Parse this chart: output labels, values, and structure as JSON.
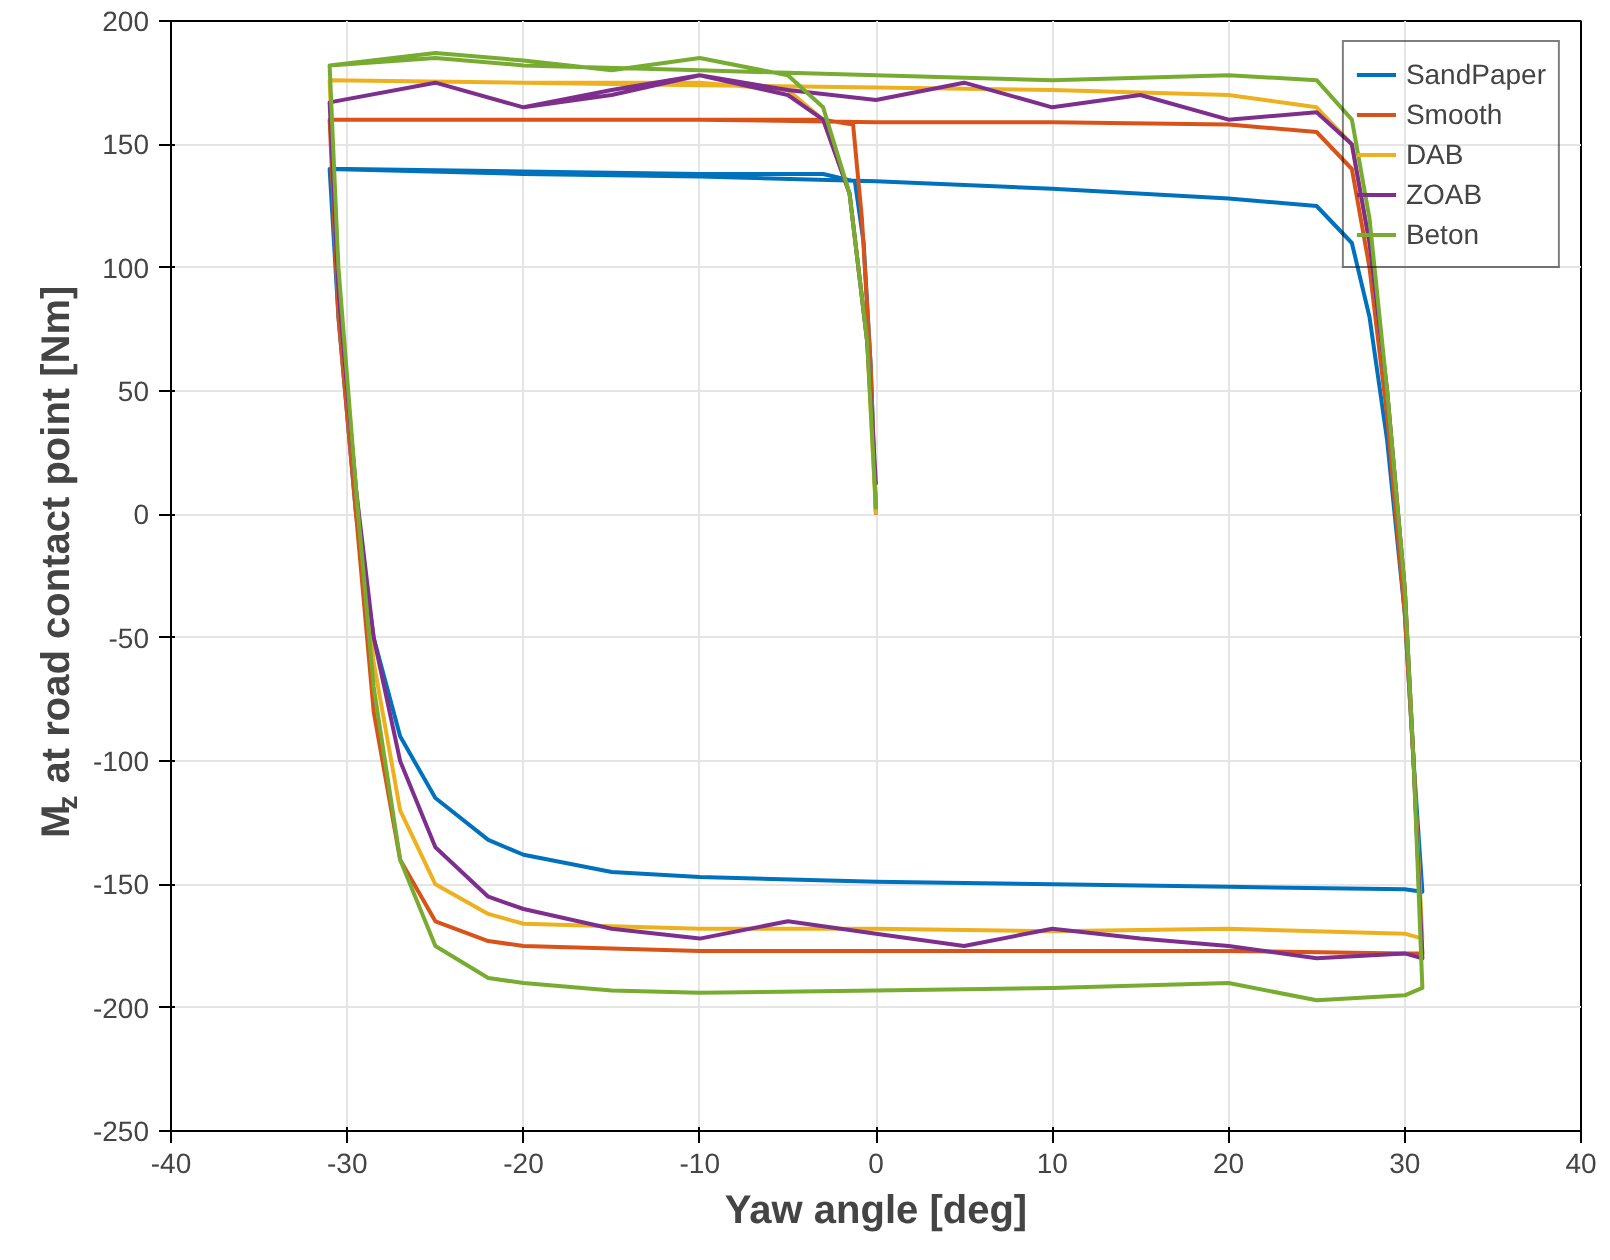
{
  "chart_data": {
    "type": "line",
    "xlabel": "Yaw angle [deg]",
    "ylabel": "M$_{z}$ at road contact point [Nm]",
    "xlim": [
      -40,
      40
    ],
    "xticks": [
      -40,
      -30,
      -20,
      -10,
      0,
      10,
      20,
      30,
      40
    ],
    "ylim": [
      -250,
      200
    ],
    "yticks": [
      -250,
      -200,
      -150,
      -100,
      -50,
      0,
      50,
      100,
      150,
      200
    ],
    "grid": true,
    "legend": "top right",
    "line_style": "solid",
    "series": [
      {
        "name": "SandPaper",
        "color": "#0072bd",
        "x": [
          0,
          -0.3,
          -0.7,
          -1.2,
          -3,
          -10,
          -20,
          -30,
          -31,
          -30.5,
          -29.5,
          -28.5,
          -27,
          -25,
          -22,
          -20,
          -15,
          -10,
          0,
          10,
          20,
          30,
          31,
          30.5,
          30,
          29,
          28,
          27,
          25,
          20,
          10,
          0,
          -10,
          -20,
          -31
        ],
        "values": [
          0,
          60,
          110,
          135,
          138,
          138,
          139,
          140,
          140,
          80,
          0,
          -50,
          -90,
          -115,
          -132,
          -138,
          -145,
          -147,
          -149,
          -150,
          -151,
          -152,
          -153,
          -100,
          -40,
          30,
          80,
          110,
          125,
          128,
          132,
          135,
          137,
          138,
          140
        ]
      },
      {
        "name": "Smooth",
        "color": "#d95319",
        "x": [
          0,
          -0.3,
          -0.8,
          -1.3,
          -3,
          -10,
          -20,
          -31,
          -30.5,
          -29.5,
          -28.5,
          -27,
          -25,
          -22,
          -20,
          -10,
          0,
          10,
          20,
          30,
          31,
          30.5,
          30,
          29,
          28,
          27,
          25,
          20,
          10,
          0,
          -10,
          -20,
          -31
        ],
        "values": [
          0,
          60,
          120,
          158,
          160,
          160,
          160,
          160,
          80,
          0,
          -80,
          -140,
          -165,
          -173,
          -175,
          -177,
          -177,
          -177,
          -177,
          -178,
          -178,
          -100,
          -40,
          40,
          100,
          140,
          155,
          158,
          159,
          159,
          160,
          160,
          160
        ]
      },
      {
        "name": "DAB",
        "color": "#edb120",
        "x": [
          0,
          -0.5,
          -1.5,
          -3,
          -5,
          -10,
          -20,
          -31,
          -30.5,
          -29.5,
          -28.5,
          -27,
          -25,
          -22,
          -20,
          -10,
          0,
          10,
          20,
          30,
          31,
          30.5,
          30,
          29,
          28,
          27,
          25,
          20,
          10,
          0,
          -10,
          -20,
          -31
        ],
        "values": [
          0,
          70,
          130,
          160,
          172,
          175,
          175,
          176,
          90,
          10,
          -60,
          -120,
          -150,
          -162,
          -166,
          -168,
          -168,
          -169,
          -168,
          -170,
          -172,
          -100,
          -30,
          50,
          110,
          150,
          165,
          170,
          172,
          173,
          174,
          175,
          176
        ]
      },
      {
        "name": "ZOAB",
        "color": "#7e2f8e",
        "x": [
          0,
          -0.5,
          -1.5,
          -3,
          -5,
          -10,
          -15,
          -20,
          -25,
          -31,
          -30.5,
          -29.5,
          -28.5,
          -27,
          -25,
          -22,
          -20,
          -15,
          -10,
          -5,
          0,
          5,
          10,
          15,
          20,
          25,
          30,
          31,
          30.5,
          30,
          29,
          28,
          27,
          25,
          20,
          15,
          10,
          5,
          0,
          -5,
          -10,
          -15,
          -20,
          -25,
          -31
        ],
        "values": [
          12,
          70,
          130,
          160,
          170,
          178,
          172,
          165,
          175,
          167,
          90,
          10,
          -50,
          -100,
          -135,
          -155,
          -160,
          -168,
          -172,
          -165,
          -170,
          -175,
          -168,
          -172,
          -175,
          -180,
          -178,
          -180,
          -100,
          -30,
          50,
          110,
          150,
          163,
          160,
          170,
          165,
          175,
          168,
          172,
          178,
          170,
          165,
          175,
          167
        ]
      },
      {
        "name": "Beton",
        "color": "#77ac30",
        "x": [
          0,
          -0.5,
          -1.5,
          -3,
          -5,
          -10,
          -15,
          -20,
          -25,
          -31,
          -30.5,
          -29.5,
          -28.5,
          -27,
          -25,
          -22,
          -20,
          -15,
          -10,
          0,
          10,
          20,
          25,
          30,
          31,
          30.5,
          30,
          29,
          28,
          27,
          25,
          20,
          10,
          0,
          -10,
          -20,
          -25,
          -31
        ],
        "values": [
          2,
          70,
          130,
          165,
          178,
          185,
          180,
          184,
          187,
          182,
          100,
          10,
          -70,
          -140,
          -175,
          -188,
          -190,
          -193,
          -194,
          -193,
          -192,
          -190,
          -197,
          -195,
          -192,
          -100,
          -30,
          50,
          120,
          160,
          176,
          178,
          176,
          178,
          180,
          182,
          185,
          182
        ]
      }
    ]
  }
}
